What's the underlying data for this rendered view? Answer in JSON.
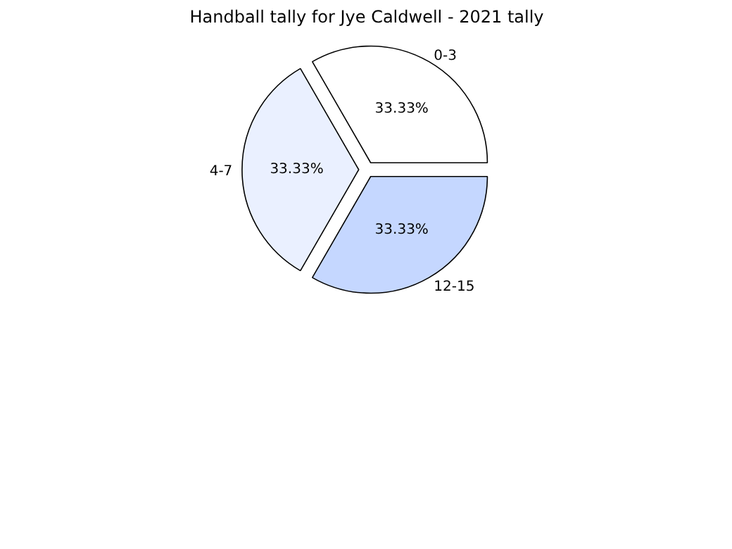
{
  "chart_data": {
    "type": "pie",
    "title": "Handball tally for Jye Caldwell - 2021 tally",
    "categories": [
      "0-3",
      "4-7",
      "12-15"
    ],
    "values": [
      33.33,
      33.33,
      33.33
    ],
    "value_labels": [
      "33.33%",
      "33.33%",
      "33.33%"
    ],
    "colors": [
      "#ffffff",
      "#eaf0ff",
      "#c5d7ff"
    ]
  }
}
